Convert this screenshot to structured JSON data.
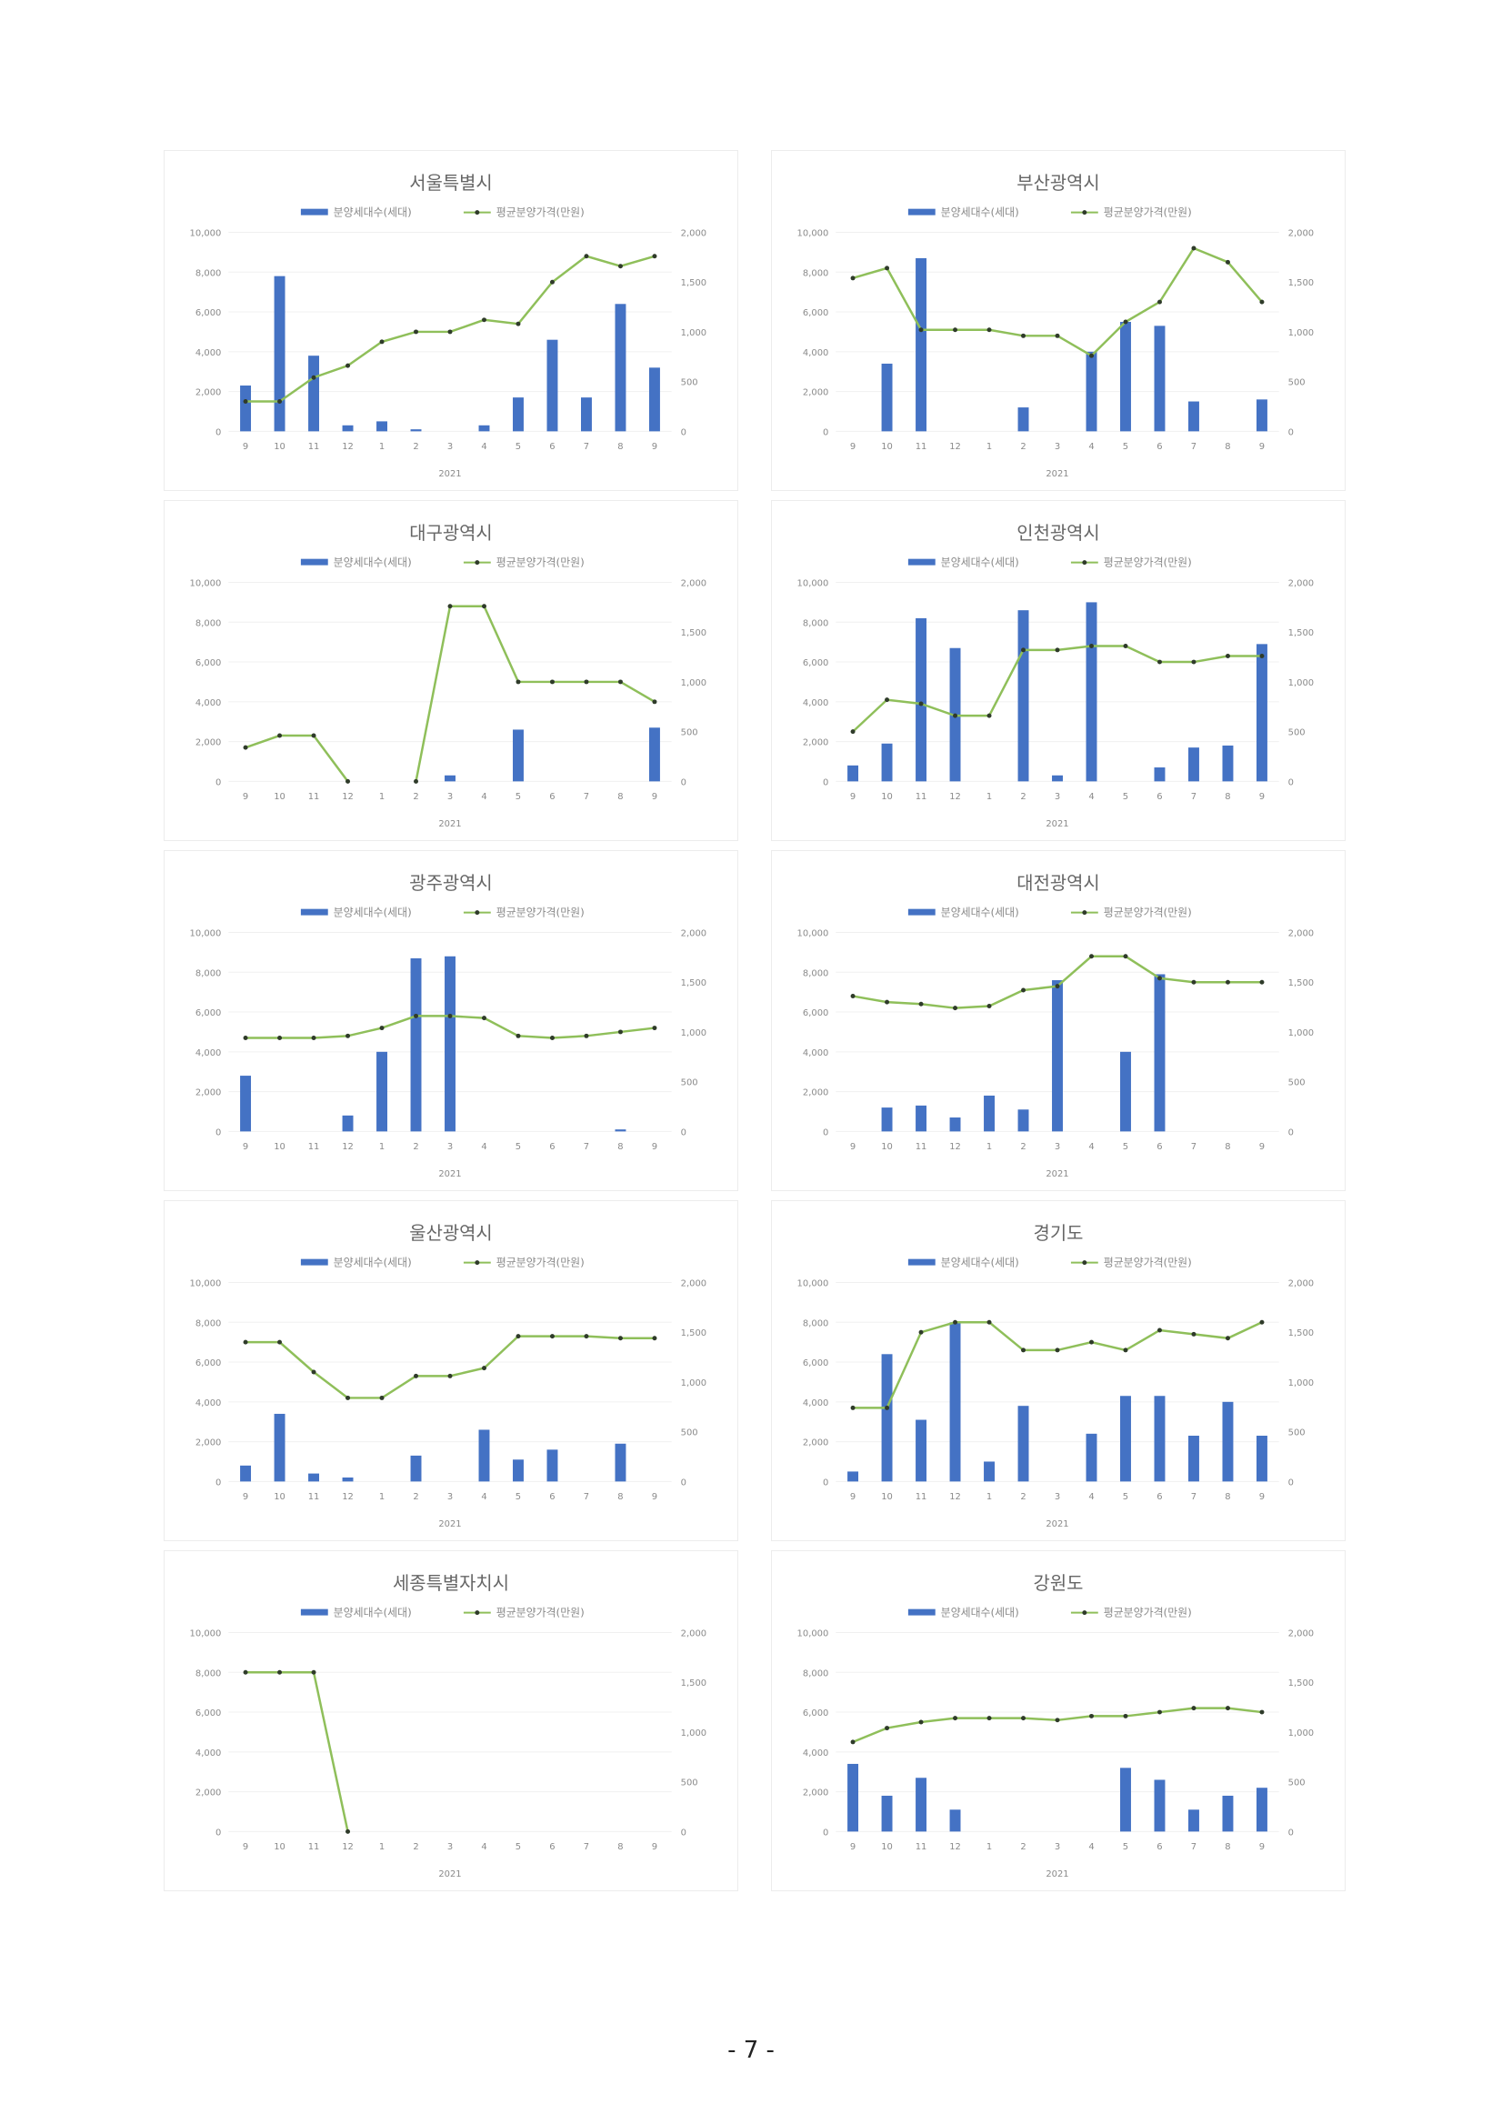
{
  "page_number": "- 7 -",
  "colors": {
    "bar": "#4472c4",
    "line": "#8fbf5a",
    "marker": "#2f3b2a",
    "grid": "#f0f0f0",
    "text": "#8a8a8a"
  },
  "legend": {
    "bar_series": "분양세대수(세대)",
    "line_series": "평균분양가격(만원)"
  },
  "chart_data": [
    {
      "type": "bar+line",
      "title": "서울특별시",
      "categories": [
        "9",
        "10",
        "11",
        "12",
        "1",
        "2",
        "3",
        "4",
        "5",
        "6",
        "7",
        "8",
        "9"
      ],
      "xlabel": "2021",
      "ylim_left": [
        0,
        10000
      ],
      "ylim_right": [
        0,
        2000
      ],
      "bars": [
        2300,
        7800,
        3800,
        300,
        500,
        100,
        0,
        300,
        1700,
        4600,
        1700,
        6400,
        3200
      ],
      "line": [
        300,
        300,
        540,
        660,
        900,
        1000,
        1000,
        1120,
        1080,
        1500,
        1760,
        1660,
        1760
      ]
    },
    {
      "type": "bar+line",
      "title": "부산광역시",
      "categories": [
        "9",
        "10",
        "11",
        "12",
        "1",
        "2",
        "3",
        "4",
        "5",
        "6",
        "7",
        "8",
        "9"
      ],
      "xlabel": "2021",
      "ylim_left": [
        0,
        10000
      ],
      "ylim_right": [
        0,
        2000
      ],
      "bars": [
        0,
        3400,
        8700,
        0,
        0,
        1200,
        0,
        4000,
        5500,
        5300,
        1500,
        0,
        1600
      ],
      "line": [
        1540,
        1640,
        1020,
        1020,
        1020,
        960,
        960,
        760,
        1100,
        1300,
        1840,
        1700,
        1300
      ]
    },
    {
      "type": "bar+line",
      "title": "대구광역시",
      "categories": [
        "9",
        "10",
        "11",
        "12",
        "1",
        "2",
        "3",
        "4",
        "5",
        "6",
        "7",
        "8",
        "9"
      ],
      "xlabel": "2021",
      "ylim_left": [
        0,
        10000
      ],
      "ylim_right": [
        0,
        2000
      ],
      "bars": [
        0,
        0,
        0,
        0,
        0,
        0,
        300,
        0,
        2600,
        0,
        0,
        0,
        2700
      ],
      "line": [
        340,
        460,
        460,
        0,
        null,
        0,
        1760,
        1760,
        1000,
        1000,
        1000,
        1000,
        800
      ]
    },
    {
      "type": "bar+line",
      "title": "인천광역시",
      "categories": [
        "9",
        "10",
        "11",
        "12",
        "1",
        "2",
        "3",
        "4",
        "5",
        "6",
        "7",
        "8",
        "9"
      ],
      "xlabel": "2021",
      "ylim_left": [
        0,
        10000
      ],
      "ylim_right": [
        0,
        2000
      ],
      "bars": [
        800,
        1900,
        8200,
        6700,
        0,
        8600,
        300,
        9000,
        0,
        700,
        1700,
        1800,
        6900
      ],
      "line": [
        500,
        820,
        780,
        660,
        660,
        1320,
        1320,
        1360,
        1360,
        1200,
        1200,
        1260,
        1260
      ]
    },
    {
      "type": "bar+line",
      "title": "광주광역시",
      "categories": [
        "9",
        "10",
        "11",
        "12",
        "1",
        "2",
        "3",
        "4",
        "5",
        "6",
        "7",
        "8",
        "9"
      ],
      "xlabel": "2021",
      "ylim_left": [
        0,
        10000
      ],
      "ylim_right": [
        0,
        2000
      ],
      "bars": [
        2800,
        0,
        0,
        800,
        4000,
        8700,
        8800,
        0,
        0,
        0,
        0,
        100,
        0
      ],
      "line": [
        940,
        940,
        940,
        960,
        1040,
        1160,
        1160,
        1140,
        960,
        940,
        960,
        1000,
        1040
      ]
    },
    {
      "type": "bar+line",
      "title": "대전광역시",
      "categories": [
        "9",
        "10",
        "11",
        "12",
        "1",
        "2",
        "3",
        "4",
        "5",
        "6",
        "7",
        "8",
        "9"
      ],
      "xlabel": "2021",
      "ylim_left": [
        0,
        10000
      ],
      "ylim_right": [
        0,
        2000
      ],
      "bars": [
        0,
        1200,
        1300,
        700,
        1800,
        1100,
        7600,
        0,
        4000,
        7900,
        0,
        0,
        0
      ],
      "line": [
        1360,
        1300,
        1280,
        1240,
        1260,
        1420,
        1460,
        1760,
        1760,
        1540,
        1500,
        1500,
        1500
      ]
    },
    {
      "type": "bar+line",
      "title": "울산광역시",
      "categories": [
        "9",
        "10",
        "11",
        "12",
        "1",
        "2",
        "3",
        "4",
        "5",
        "6",
        "7",
        "8",
        "9"
      ],
      "xlabel": "2021",
      "ylim_left": [
        0,
        10000
      ],
      "ylim_right": [
        0,
        2000
      ],
      "bars": [
        800,
        3400,
        400,
        200,
        0,
        1300,
        0,
        2600,
        1100,
        1600,
        0,
        1900,
        0
      ],
      "line": [
        1400,
        1400,
        1100,
        840,
        840,
        1060,
        1060,
        1140,
        1460,
        1460,
        1460,
        1440,
        1440
      ]
    },
    {
      "type": "bar+line",
      "title": "경기도",
      "categories": [
        "9",
        "10",
        "11",
        "12",
        "1",
        "2",
        "3",
        "4",
        "5",
        "6",
        "7",
        "8",
        "9"
      ],
      "xlabel": "2021",
      "ylim_left": [
        0,
        10000
      ],
      "ylim_right": [
        0,
        2000
      ],
      "bars": [
        500,
        6400,
        3100,
        8000,
        1000,
        3800,
        0,
        2400,
        4300,
        4300,
        2300,
        4000,
        2300
      ],
      "line": [
        740,
        740,
        1500,
        1600,
        1600,
        1320,
        1320,
        1400,
        1320,
        1520,
        1480,
        1440,
        1600
      ]
    },
    {
      "type": "bar+line",
      "title": "세종특별자치시",
      "categories": [
        "9",
        "10",
        "11",
        "12",
        "1",
        "2",
        "3",
        "4",
        "5",
        "6",
        "7",
        "8",
        "9"
      ],
      "xlabel": "2021",
      "ylim_left": [
        0,
        10000
      ],
      "ylim_right": [
        0,
        2000
      ],
      "bars": [
        0,
        0,
        0,
        0,
        0,
        0,
        0,
        0,
        0,
        0,
        0,
        0,
        0
      ],
      "line": [
        1600,
        1600,
        1600,
        0,
        null,
        null,
        null,
        null,
        null,
        null,
        null,
        null,
        null
      ]
    },
    {
      "type": "bar+line",
      "title": "강원도",
      "categories": [
        "9",
        "10",
        "11",
        "12",
        "1",
        "2",
        "3",
        "4",
        "5",
        "6",
        "7",
        "8",
        "9"
      ],
      "xlabel": "2021",
      "ylim_left": [
        0,
        10000
      ],
      "ylim_right": [
        0,
        2000
      ],
      "bars": [
        3400,
        1800,
        2700,
        1100,
        0,
        0,
        0,
        0,
        3200,
        2600,
        1100,
        1800,
        2200
      ],
      "line": [
        900,
        1040,
        1100,
        1140,
        1140,
        1140,
        1120,
        1160,
        1160,
        1200,
        1240,
        1240,
        1200
      ]
    }
  ]
}
